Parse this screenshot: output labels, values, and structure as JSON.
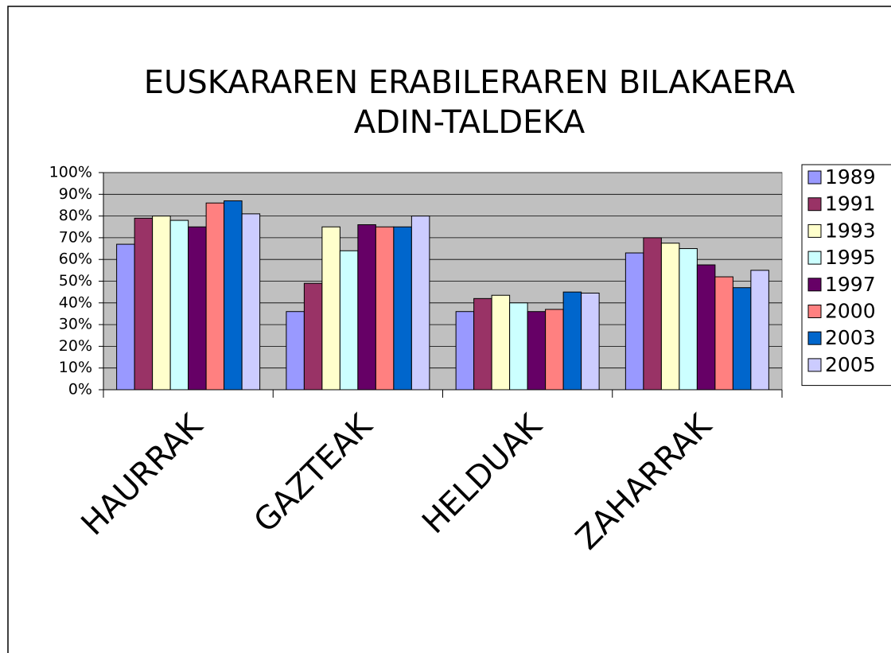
{
  "chart_data": {
    "type": "bar",
    "title": [
      "EUSKARAREN ERABILERAREN BILAKAERA",
      "ADIN-TALDEKA"
    ],
    "categories": [
      "HAURRAK",
      "GAZTEAK",
      "HELDUAK",
      "ZAHARRAK"
    ],
    "series": [
      {
        "name": "1989",
        "color": "#9999ff",
        "values": [
          67,
          36,
          36,
          63
        ]
      },
      {
        "name": "1991",
        "color": "#993366",
        "values": [
          79,
          49,
          42,
          70
        ]
      },
      {
        "name": "1993",
        "color": "#ffffcc",
        "values": [
          80,
          75,
          43.5,
          67.5
        ]
      },
      {
        "name": "1995",
        "color": "#ccffff",
        "values": [
          78,
          64,
          40,
          65
        ]
      },
      {
        "name": "1997",
        "color": "#660066",
        "values": [
          75,
          76,
          36,
          57.5
        ]
      },
      {
        "name": "2000",
        "color": "#ff8080",
        "values": [
          86,
          75,
          37,
          52
        ]
      },
      {
        "name": "2003",
        "color": "#0066cc",
        "values": [
          87,
          75,
          45,
          47
        ]
      },
      {
        "name": "2005",
        "color": "#ccccff",
        "values": [
          81,
          80,
          44.5,
          55
        ]
      }
    ],
    "ylim": [
      0,
      100
    ],
    "yticks": [
      {
        "value": 0,
        "label": "0%"
      },
      {
        "value": 10,
        "label": "10%"
      },
      {
        "value": 20,
        "label": "20%"
      },
      {
        "value": 30,
        "label": "30%"
      },
      {
        "value": 40,
        "label": "40%"
      },
      {
        "value": 50,
        "label": "50%"
      },
      {
        "value": 60,
        "label": "60%"
      },
      {
        "value": 70,
        "label": "70%"
      },
      {
        "value": 80,
        "label": "80%"
      },
      {
        "value": 90,
        "label": "90%"
      },
      {
        "value": 100,
        "label": "100%"
      }
    ],
    "grid": true,
    "legend": "right",
    "plot_background": "#c0c0c0"
  }
}
